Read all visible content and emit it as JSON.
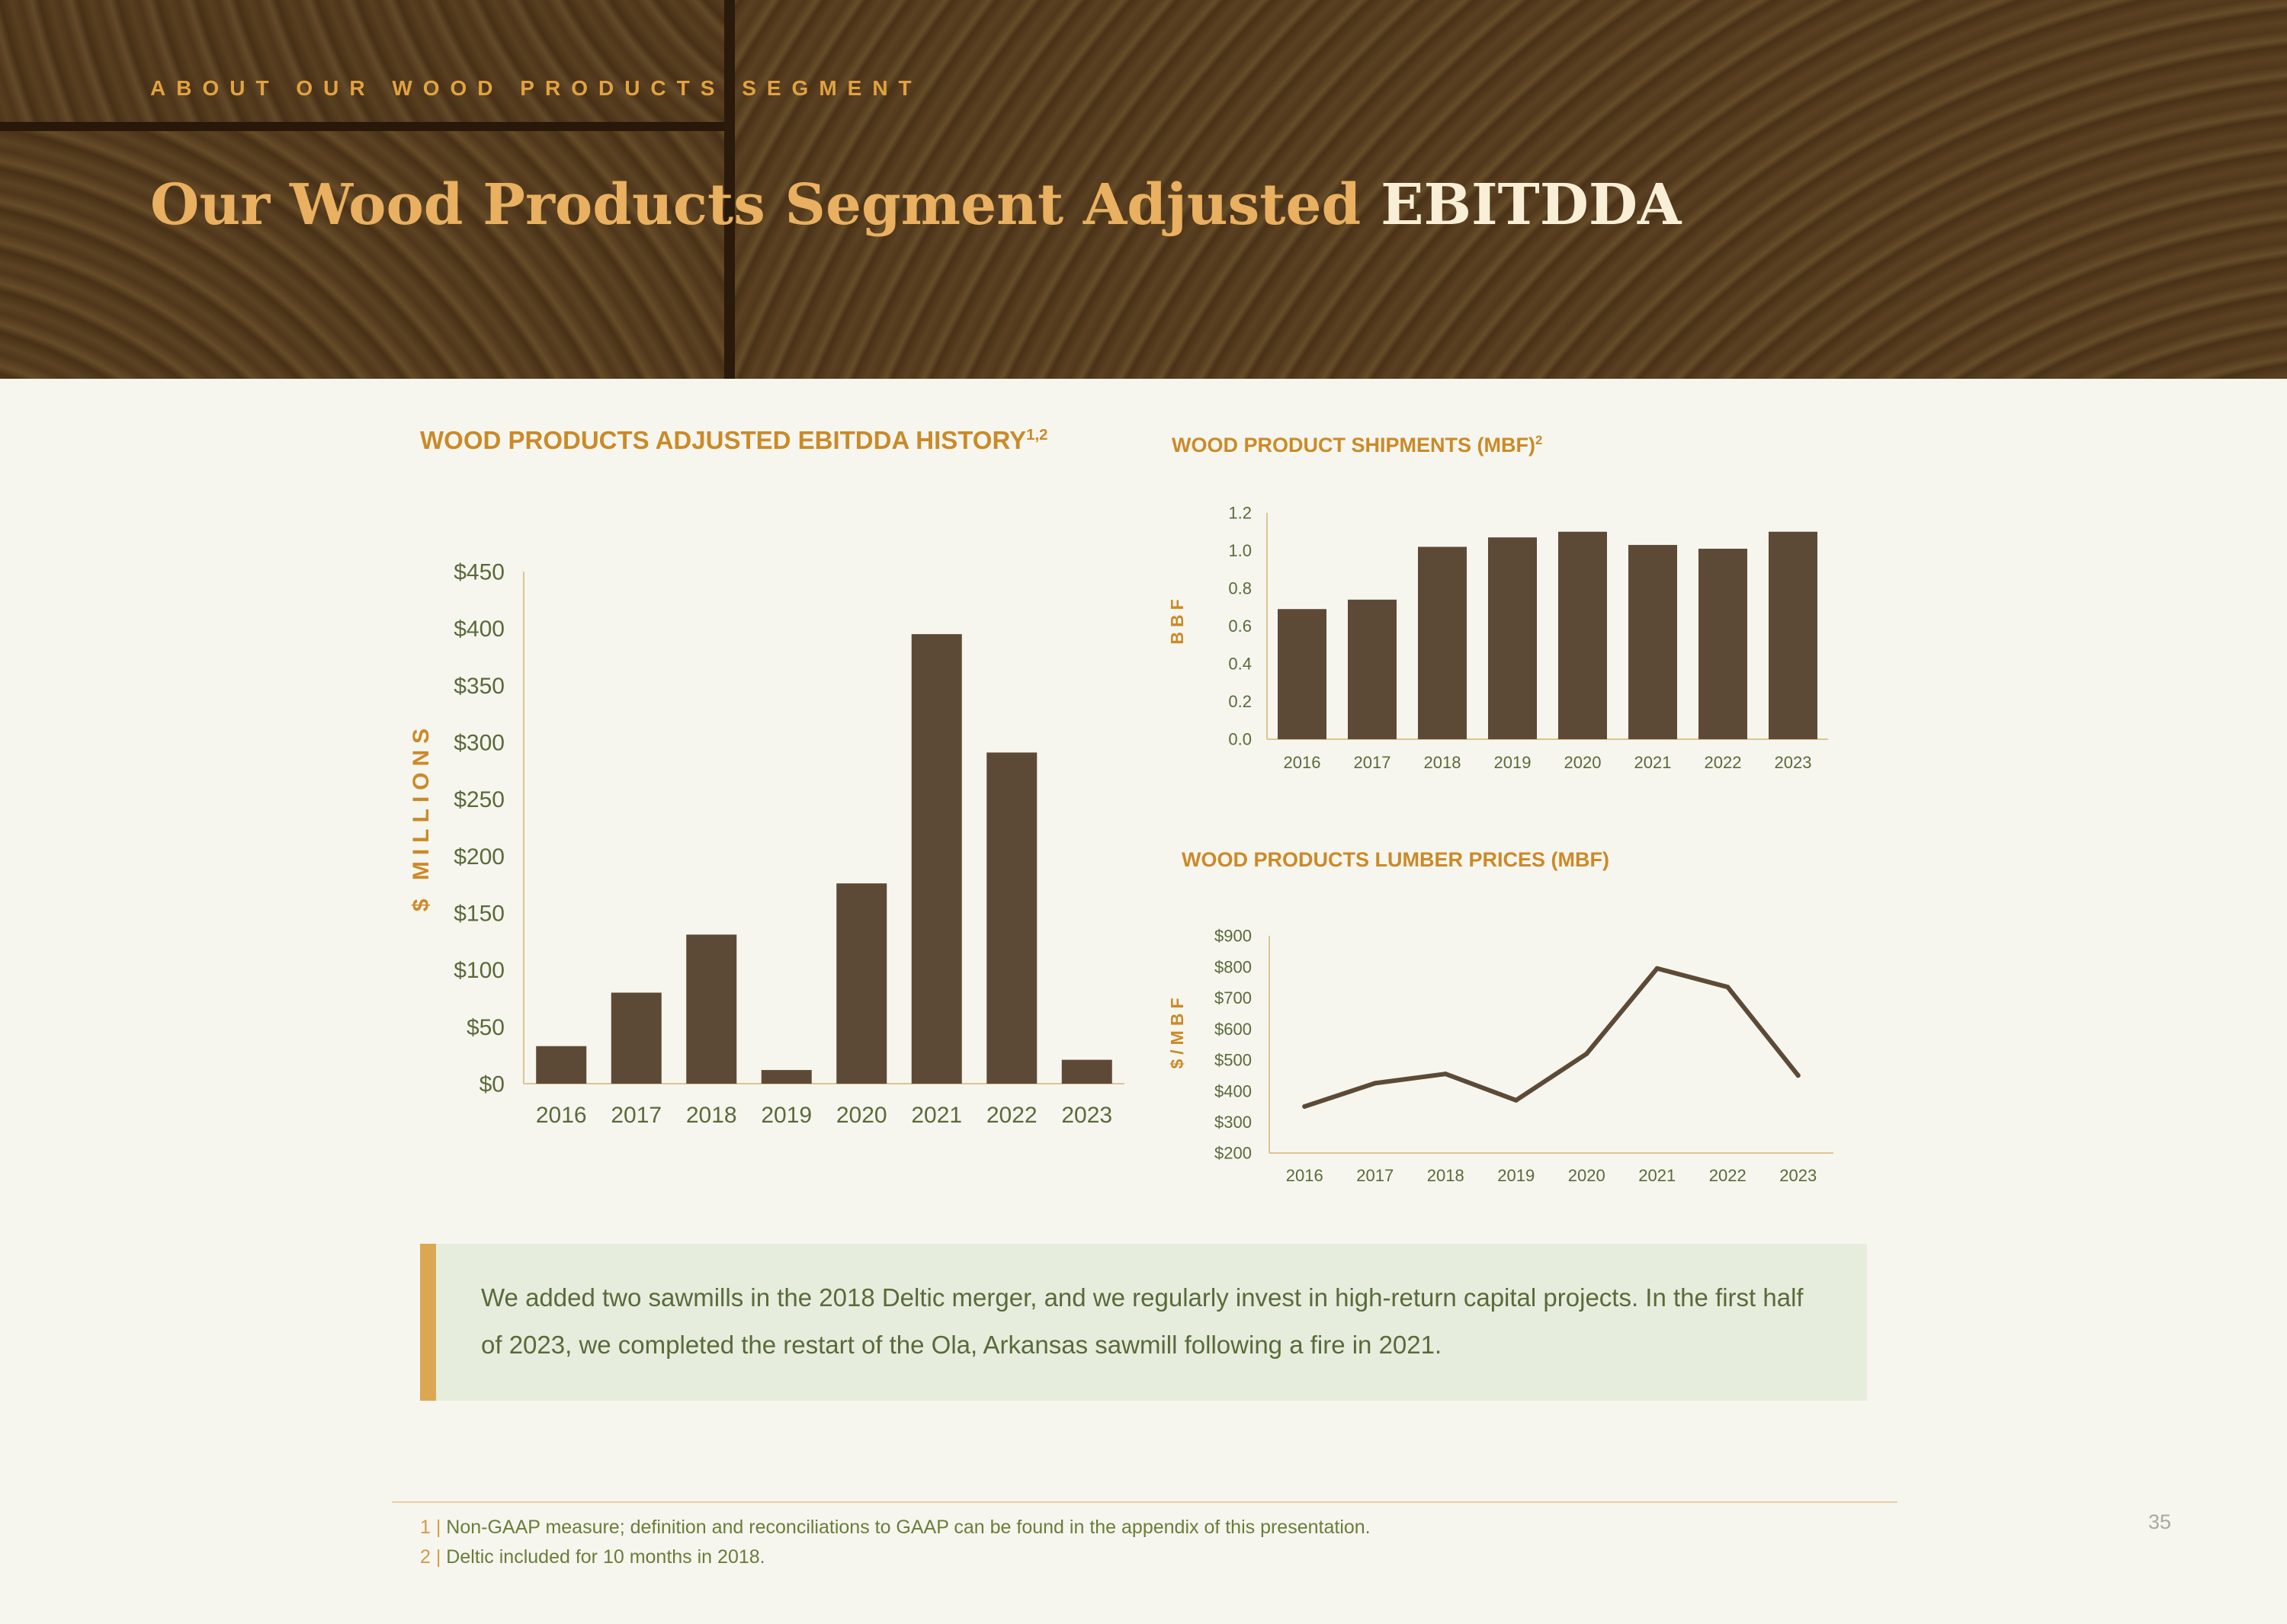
{
  "header": {
    "eyebrow": "ABOUT OUR WOOD PRODUCTS SEGMENT",
    "title_main": "Our Wood Products Segment Adjusted",
    "title_highlight": "EBITDDA"
  },
  "section_titles": {
    "ebitdda": {
      "text": "WOOD PRODUCTS ADJUSTED EBITDDA HISTORY",
      "sup": "1,2"
    },
    "shipments": {
      "text": "WOOD PRODUCT SHIPMENTS (MBF)",
      "sup": "2"
    },
    "prices": {
      "text": "WOOD PRODUCTS LUMBER PRICES (MBF)"
    }
  },
  "chart_data": [
    {
      "type": "bar",
      "title": "WOOD PRODUCTS ADJUSTED EBITDDA HISTORY",
      "ylabel": "$ MILLIONS",
      "xlabel": "",
      "categories": [
        "2016",
        "2017",
        "2018",
        "2019",
        "2020",
        "2021",
        "2022",
        "2023"
      ],
      "values": [
        33,
        80,
        131,
        12,
        176,
        395,
        291,
        21
      ],
      "ylim": [
        0,
        450
      ],
      "yticks": [
        0,
        50,
        100,
        150,
        200,
        250,
        300,
        350,
        400,
        450
      ],
      "ytick_labels": [
        "$0",
        "$50",
        "$100",
        "$150",
        "$200",
        "$250",
        "$300",
        "$350",
        "$400",
        "$450"
      ],
      "grid": false,
      "color": "#5d4a36"
    },
    {
      "type": "bar",
      "title": "WOOD PRODUCT SHIPMENTS (MBF)",
      "ylabel": "BBF",
      "xlabel": "",
      "categories": [
        "2016",
        "2017",
        "2018",
        "2019",
        "2020",
        "2021",
        "2022",
        "2023"
      ],
      "values": [
        0.69,
        0.74,
        1.02,
        1.07,
        1.1,
        1.03,
        1.01,
        1.1
      ],
      "ylim": [
        0,
        1.2
      ],
      "yticks": [
        0,
        0.2,
        0.4,
        0.6,
        0.8,
        1.0,
        1.2
      ],
      "ytick_labels": [
        "0.0",
        "0.2",
        "0.4",
        "0.6",
        "0.8",
        "1.0",
        "1.2"
      ],
      "grid": false,
      "color": "#5d4a36"
    },
    {
      "type": "line",
      "title": "WOOD PRODUCTS LUMBER PRICES (MBF)",
      "ylabel": "$/MBF",
      "xlabel": "",
      "categories": [
        "2016",
        "2017",
        "2018",
        "2019",
        "2020",
        "2021",
        "2022",
        "2023"
      ],
      "values": [
        350,
        425,
        455,
        370,
        520,
        795,
        735,
        450
      ],
      "ylim": [
        200,
        900
      ],
      "yticks": [
        200,
        300,
        400,
        500,
        600,
        700,
        800,
        900
      ],
      "ytick_labels": [
        "$200",
        "$300",
        "$400",
        "$500",
        "$600",
        "$700",
        "$800",
        "$900"
      ],
      "grid": false,
      "color": "#5d4a36"
    }
  ],
  "callout": {
    "text": "We added two sawmills in the 2018 Deltic merger, and we regularly invest in high-return capital projects. In the first half of 2023, we completed the restart of the Ola, Arkansas sawmill following a fire in 2021."
  },
  "footnotes": [
    {
      "num": "1 |",
      "text": "Non-GAAP measure; definition and reconciliations to GAAP can be found in the appendix of this presentation."
    },
    {
      "num": "2 |",
      "text": "Deltic included for 10 months in 2018."
    }
  ],
  "page_number": "35",
  "colors": {
    "accent": "#cb8a28",
    "bar": "#5d4a36",
    "axis": "#dcc493",
    "tick_text": "#5a6a3a",
    "background": "#f6f6ee"
  }
}
